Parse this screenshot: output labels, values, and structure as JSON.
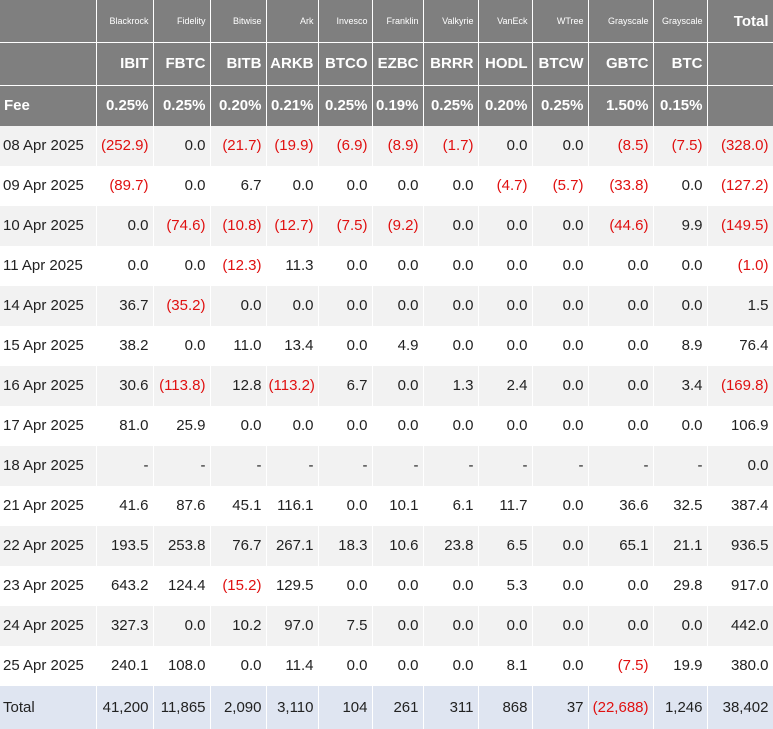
{
  "header": {
    "issuers": [
      "Blackrock",
      "Fidelity",
      "Bitwise",
      "Ark",
      "Invesco",
      "Franklin",
      "Valkyrie",
      "VanEck",
      "WTree",
      "Grayscale",
      "Grayscale"
    ],
    "total": "Total",
    "tickers": [
      "IBIT",
      "FBTC",
      "BITB",
      "ARKB",
      "BTCO",
      "EZBC",
      "BRRR",
      "HODL",
      "BTCW",
      "GBTC",
      "BTC"
    ],
    "fee_label": "Fee",
    "fees": [
      "0.25%",
      "0.25%",
      "0.20%",
      "0.21%",
      "0.25%",
      "0.19%",
      "0.25%",
      "0.20%",
      "0.25%",
      "1.50%",
      "0.15%"
    ]
  },
  "table": {
    "rows": [
      {
        "date": "08 Apr 2025",
        "cells": [
          "(252.9)",
          "0.0",
          "(21.7)",
          "(19.9)",
          "(6.9)",
          "(8.9)",
          "(1.7)",
          "0.0",
          "0.0",
          "(8.5)",
          "(7.5)",
          "(328.0)"
        ]
      },
      {
        "date": "09 Apr 2025",
        "cells": [
          "(89.7)",
          "0.0",
          "6.7",
          "0.0",
          "0.0",
          "0.0",
          "0.0",
          "(4.7)",
          "(5.7)",
          "(33.8)",
          "0.0",
          "(127.2)"
        ]
      },
      {
        "date": "10 Apr 2025",
        "cells": [
          "0.0",
          "(74.6)",
          "(10.8)",
          "(12.7)",
          "(7.5)",
          "(9.2)",
          "0.0",
          "0.0",
          "0.0",
          "(44.6)",
          "9.9",
          "(149.5)"
        ]
      },
      {
        "date": "11 Apr 2025",
        "cells": [
          "0.0",
          "0.0",
          "(12.3)",
          "11.3",
          "0.0",
          "0.0",
          "0.0",
          "0.0",
          "0.0",
          "0.0",
          "0.0",
          "(1.0)"
        ]
      },
      {
        "date": "14 Apr 2025",
        "cells": [
          "36.7",
          "(35.2)",
          "0.0",
          "0.0",
          "0.0",
          "0.0",
          "0.0",
          "0.0",
          "0.0",
          "0.0",
          "0.0",
          "1.5"
        ]
      },
      {
        "date": "15 Apr 2025",
        "cells": [
          "38.2",
          "0.0",
          "11.0",
          "13.4",
          "0.0",
          "4.9",
          "0.0",
          "0.0",
          "0.0",
          "0.0",
          "8.9",
          "76.4"
        ]
      },
      {
        "date": "16 Apr 2025",
        "cells": [
          "30.6",
          "(113.8)",
          "12.8",
          "(113.2)",
          "6.7",
          "0.0",
          "1.3",
          "2.4",
          "0.0",
          "0.0",
          "3.4",
          "(169.8)"
        ]
      },
      {
        "date": "17 Apr 2025",
        "cells": [
          "81.0",
          "25.9",
          "0.0",
          "0.0",
          "0.0",
          "0.0",
          "0.0",
          "0.0",
          "0.0",
          "0.0",
          "0.0",
          "106.9"
        ]
      },
      {
        "date": "18 Apr 2025",
        "cells": [
          "-",
          "-",
          "-",
          "-",
          "-",
          "-",
          "-",
          "-",
          "-",
          "-",
          "-",
          "0.0"
        ]
      },
      {
        "date": "21 Apr 2025",
        "cells": [
          "41.6",
          "87.6",
          "45.1",
          "116.1",
          "0.0",
          "10.1",
          "6.1",
          "11.7",
          "0.0",
          "36.6",
          "32.5",
          "387.4"
        ]
      },
      {
        "date": "22 Apr 2025",
        "cells": [
          "193.5",
          "253.8",
          "76.7",
          "267.1",
          "18.3",
          "10.6",
          "23.8",
          "6.5",
          "0.0",
          "65.1",
          "21.1",
          "936.5"
        ]
      },
      {
        "date": "23 Apr 2025",
        "cells": [
          "643.2",
          "124.4",
          "(15.2)",
          "129.5",
          "0.0",
          "0.0",
          "0.0",
          "5.3",
          "0.0",
          "0.0",
          "29.8",
          "917.0"
        ]
      },
      {
        "date": "24 Apr 2025",
        "cells": [
          "327.3",
          "0.0",
          "10.2",
          "97.0",
          "7.5",
          "0.0",
          "0.0",
          "0.0",
          "0.0",
          "0.0",
          "0.0",
          "442.0"
        ]
      },
      {
        "date": "25 Apr 2025",
        "cells": [
          "240.1",
          "108.0",
          "0.0",
          "11.4",
          "0.0",
          "0.0",
          "0.0",
          "8.1",
          "0.0",
          "(7.5)",
          "19.9",
          "380.0"
        ]
      }
    ],
    "total_row": {
      "label": "Total",
      "cells": [
        "41,200",
        "11,865",
        "2,090",
        "3,110",
        "104",
        "261",
        "311",
        "868",
        "37",
        "(22,688)",
        "1,246",
        "38,402"
      ]
    }
  }
}
